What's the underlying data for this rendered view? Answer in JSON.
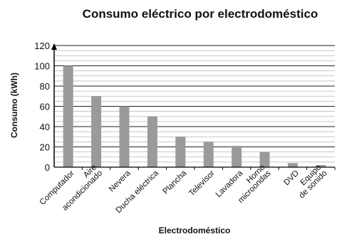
{
  "chart_data": {
    "type": "bar",
    "title": "Consumo eléctrico por electrodoméstico",
    "xlabel": "Electrodoméstico",
    "ylabel": "Consumo (kWh)",
    "ylim": [
      0,
      120
    ],
    "yticks": [
      0,
      20,
      40,
      60,
      80,
      100,
      120
    ],
    "grid": true,
    "categories": [
      [
        "Computador"
      ],
      [
        "Aire",
        "acondicionado"
      ],
      [
        "Nevera"
      ],
      [
        "Ducha eléctrica"
      ],
      [
        "Plancha"
      ],
      [
        "Televisor"
      ],
      [
        "Lavadora"
      ],
      [
        "Horno",
        "microondas"
      ],
      [
        "DVD"
      ],
      [
        "Equipo",
        "de sonido"
      ]
    ],
    "values": [
      100,
      70,
      60,
      50,
      30,
      25,
      21,
      15,
      4,
      2
    ],
    "bar_color": "#9a9a9a"
  }
}
